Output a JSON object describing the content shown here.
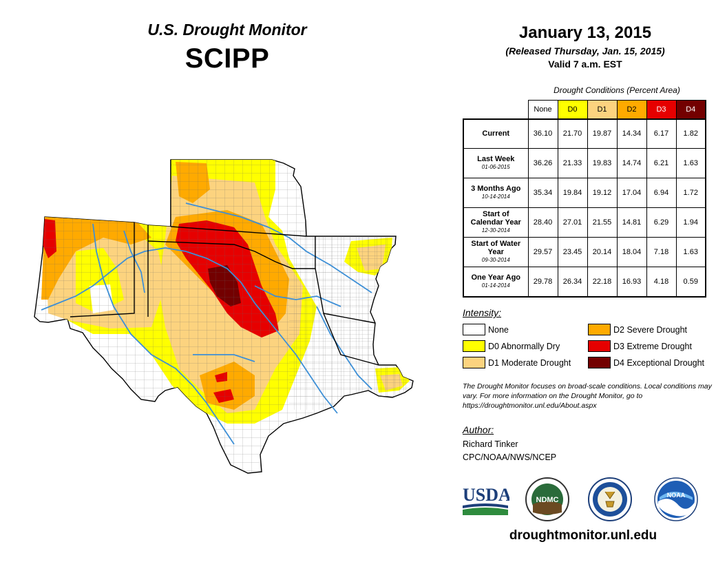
{
  "header": {
    "monitor_title": "U.S. Drought Monitor",
    "region": "SCIPP",
    "date": "January 13, 2015",
    "released": "(Released Thursday, Jan. 15, 2015)",
    "valid": "Valid 7 a.m. EST"
  },
  "table": {
    "caption": "Drought Conditions (Percent Area)",
    "columns": [
      {
        "label": "None",
        "color": "#ffffff",
        "text_color": "#000000"
      },
      {
        "label": "D0",
        "color": "#ffff00",
        "text_color": "#000000"
      },
      {
        "label": "D1",
        "color": "#fcd37f",
        "text_color": "#000000"
      },
      {
        "label": "D2",
        "color": "#ffaa00",
        "text_color": "#000000"
      },
      {
        "label": "D3",
        "color": "#e60000",
        "text_color": "#ffffff"
      },
      {
        "label": "D4",
        "color": "#730000",
        "text_color": "#ffffff"
      }
    ],
    "rows": [
      {
        "label": "Current",
        "sub": "",
        "values": [
          "36.10",
          "21.70",
          "19.87",
          "14.34",
          "6.17",
          "1.82"
        ]
      },
      {
        "label": "Last Week",
        "sub": "01-06-2015",
        "values": [
          "36.26",
          "21.33",
          "19.83",
          "14.74",
          "6.21",
          "1.63"
        ]
      },
      {
        "label": "3 Months Ago",
        "sub": "10-14-2014",
        "values": [
          "35.34",
          "19.84",
          "19.12",
          "17.04",
          "6.94",
          "1.72"
        ]
      },
      {
        "label": "Start of Calendar Year",
        "sub": "12-30-2014",
        "values": [
          "28.40",
          "27.01",
          "21.55",
          "14.81",
          "6.29",
          "1.94"
        ]
      },
      {
        "label": "Start of Water Year",
        "sub": "09-30-2014",
        "values": [
          "29.57",
          "23.45",
          "20.14",
          "18.04",
          "7.18",
          "1.63"
        ]
      },
      {
        "label": "One Year Ago",
        "sub": "01-14-2014",
        "values": [
          "29.78",
          "26.34",
          "22.18",
          "16.93",
          "4.18",
          "0.59"
        ]
      }
    ]
  },
  "legend": {
    "title": "Intensity:",
    "items": [
      {
        "label": "None",
        "color": "#ffffff"
      },
      {
        "label": "D0 Abnormally Dry",
        "color": "#ffff00"
      },
      {
        "label": "D1 Moderate Drought",
        "color": "#fcd37f"
      },
      {
        "label": "D2 Severe Drought",
        "color": "#ffaa00"
      },
      {
        "label": "D3 Extreme Drought",
        "color": "#e60000"
      },
      {
        "label": "D4 Exceptional Drought",
        "color": "#730000"
      }
    ]
  },
  "note": "The Drought Monitor focuses on broad-scale conditions. Local conditions may vary. For more information on the Drought Monitor, go to https://droughtmonitor.unl.edu/About.aspx",
  "author": {
    "label": "Author:",
    "name": "Richard Tinker",
    "org": "CPC/NOAA/NWS/NCEP"
  },
  "logos": {
    "usda": "USDA",
    "ndmc": "NDMC",
    "noaa": "NOAA"
  },
  "url": "droughtmonitor.unl.edu",
  "colors": {
    "river": "#3d8fd6",
    "county_line": "#555555",
    "state_line": "#000000"
  }
}
